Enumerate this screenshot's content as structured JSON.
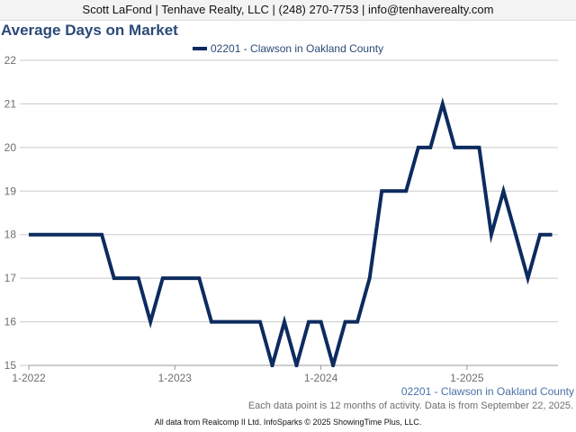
{
  "header": {
    "contact": "Scott LaFond | Tenhave Realty, LLC | (248) 270-7753 | info@tenhaverealty.com"
  },
  "footer": {
    "note": "Each data point is 12 months of activity. Data is from September 22, 2025.",
    "credits": "All data from Realcomp II Ltd. InfoSparks © 2025 ShowingTime Plus, LLC."
  },
  "chart_data": {
    "type": "line",
    "title": "Average Days on Market",
    "xlabel": "",
    "ylabel": "",
    "ylim": [
      15,
      22
    ],
    "y_ticks": [
      15,
      16,
      17,
      18,
      19,
      20,
      21,
      22
    ],
    "x_ticks": [
      "1-2022",
      "1-2023",
      "1-2024",
      "1-2025"
    ],
    "grid": true,
    "legend_position": "top",
    "x_end_label": "02201 - Clawson in Oakland County",
    "series": [
      {
        "name": "02201 - Clawson in Oakland County",
        "color": "#0d2b5e",
        "x": [
          "2022-01",
          "2022-02",
          "2022-03",
          "2022-04",
          "2022-05",
          "2022-06",
          "2022-07",
          "2022-08",
          "2022-09",
          "2022-10",
          "2022-11",
          "2022-12",
          "2023-01",
          "2023-02",
          "2023-03",
          "2023-04",
          "2023-05",
          "2023-06",
          "2023-07",
          "2023-08",
          "2023-09",
          "2023-10",
          "2023-11",
          "2023-12",
          "2024-01",
          "2024-02",
          "2024-03",
          "2024-04",
          "2024-05",
          "2024-06",
          "2024-07",
          "2024-08",
          "2024-09",
          "2024-10",
          "2024-11",
          "2024-12",
          "2025-01",
          "2025-02",
          "2025-03",
          "2025-04",
          "2025-05",
          "2025-06",
          "2025-07",
          "2025-08"
        ],
        "values": [
          18,
          18,
          18,
          18,
          18,
          18,
          18,
          17,
          17,
          17,
          16,
          17,
          17,
          17,
          17,
          16,
          16,
          16,
          16,
          16,
          15,
          16,
          15,
          16,
          16,
          15,
          16,
          16,
          17,
          19,
          19,
          19,
          20,
          20,
          21,
          20,
          20,
          20,
          18,
          19,
          18,
          17,
          18,
          18
        ]
      }
    ]
  }
}
